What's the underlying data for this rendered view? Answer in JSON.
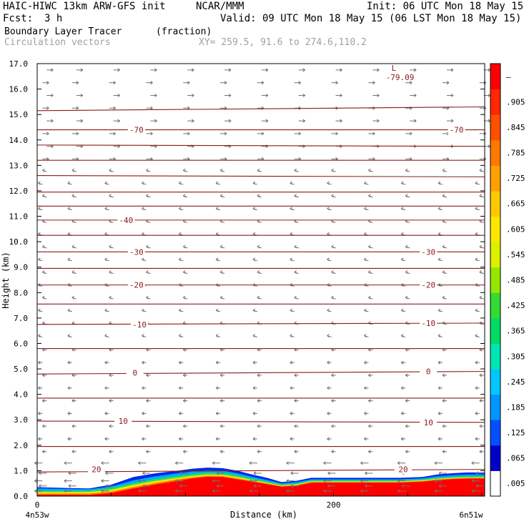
{
  "header": {
    "model": "HAIC-HIWC 13km ARW-GFS init",
    "center": "NCAR/MMM",
    "init": "Init: 06 UTC Mon 18 May 15",
    "fcst_label": "Fcst:",
    "fcst_value": "3 h",
    "valid": "Valid: 09 UTC Mon 18 May 15 (06 LST Mon 18 May 15)",
    "field_name": "Boundary Layer Tracer",
    "field_units": "(fraction)",
    "overlay": "Circulation vectors",
    "cross_section": "XY= 259.5, 91.6 to 274.6,110.2"
  },
  "chart_data": {
    "type": "area",
    "xlabel": "Distance (km)",
    "ylabel": "Height (km)",
    "xlim": [
      0,
      302
    ],
    "ylim": [
      0,
      17
    ],
    "x_ticks": [
      {
        "value": 0,
        "label": "0"
      },
      {
        "value": 200,
        "label": "200"
      }
    ],
    "x_end_labels": {
      "left": "4n53w",
      "right": "6n51w"
    },
    "y_ticks": [
      {
        "value": 0,
        "label": "0.0"
      },
      {
        "value": 1,
        "label": "1.0"
      },
      {
        "value": 2,
        "label": "2.0"
      },
      {
        "value": 3,
        "label": "3.0"
      },
      {
        "value": 4,
        "label": "4.0"
      },
      {
        "value": 5,
        "label": "5.0"
      },
      {
        "value": 6,
        "label": "6.0"
      },
      {
        "value": 7,
        "label": "7.0"
      },
      {
        "value": 8,
        "label": "8.0"
      },
      {
        "value": 9,
        "label": "9.0"
      },
      {
        "value": 10,
        "label": "10.0"
      },
      {
        "value": 11,
        "label": "11.0"
      },
      {
        "value": 12,
        "label": "12.0"
      },
      {
        "value": 13,
        "label": "13.0"
      },
      {
        "value": 14,
        "label": "14.0"
      },
      {
        "value": 15,
        "label": "15.0"
      },
      {
        "value": 16,
        "label": "16.0"
      },
      {
        "value": 17,
        "label": "17.0"
      }
    ],
    "colorbar": {
      "colors": [
        "#ffffff",
        "#0000c8",
        "#0050ff",
        "#0096ff",
        "#00c8ff",
        "#00e6b4",
        "#00dc64",
        "#32dc32",
        "#96e600",
        "#dcf000",
        "#ffe600",
        "#ffc800",
        "#ffa000",
        "#ff7800",
        "#ff5000",
        "#ff2800",
        "#ff0000"
      ],
      "labels": [
        ".005",
        ".065",
        ".125",
        ".185",
        ".245",
        ".305",
        ".365",
        ".425",
        ".485",
        ".545",
        ".605",
        ".665",
        ".725",
        ".785",
        ".845",
        ".905",
        "–"
      ]
    },
    "tracer_layers": [
      {
        "name": "blue",
        "color": "#0028e6",
        "x": [
          0,
          20,
          35,
          50,
          65,
          80,
          95,
          105,
          115,
          125,
          135,
          145,
          155,
          165,
          175,
          185,
          200,
          215,
          230,
          245,
          260,
          270,
          280,
          290,
          302
        ],
        "top": [
          0.35,
          0.32,
          0.3,
          0.45,
          0.75,
          0.9,
          1.0,
          1.08,
          1.12,
          1.1,
          1.0,
          0.85,
          0.72,
          0.55,
          0.6,
          0.72,
          0.72,
          0.72,
          0.72,
          0.72,
          0.75,
          0.85,
          0.9,
          0.93,
          0.93
        ]
      },
      {
        "name": "cyan",
        "color": "#00aaff",
        "x": [
          0,
          20,
          35,
          50,
          65,
          80,
          95,
          105,
          115,
          125,
          135,
          145,
          155,
          165,
          175,
          185,
          200,
          215,
          230,
          245,
          260,
          270,
          280,
          290,
          302
        ],
        "top": [
          0.3,
          0.28,
          0.27,
          0.38,
          0.62,
          0.78,
          0.9,
          0.97,
          1.02,
          1.0,
          0.9,
          0.76,
          0.64,
          0.5,
          0.55,
          0.66,
          0.66,
          0.66,
          0.66,
          0.66,
          0.7,
          0.78,
          0.82,
          0.85,
          0.85
        ]
      },
      {
        "name": "green",
        "color": "#22dd66",
        "x": [
          0,
          20,
          35,
          50,
          65,
          80,
          95,
          105,
          115,
          125,
          135,
          145,
          155,
          165,
          175,
          185,
          200,
          215,
          230,
          245,
          260,
          270,
          280,
          290,
          302
        ],
        "top": [
          0.22,
          0.22,
          0.22,
          0.32,
          0.52,
          0.68,
          0.8,
          0.88,
          0.93,
          0.92,
          0.82,
          0.7,
          0.58,
          0.46,
          0.5,
          0.62,
          0.62,
          0.62,
          0.62,
          0.62,
          0.66,
          0.72,
          0.76,
          0.78,
          0.78
        ]
      },
      {
        "name": "yellow",
        "color": "#f5e600",
        "x": [
          0,
          20,
          35,
          50,
          65,
          80,
          95,
          105,
          115,
          125,
          135,
          145,
          155,
          165,
          175,
          185,
          200,
          215,
          230,
          245,
          260,
          270,
          280,
          290,
          302
        ],
        "top": [
          0.16,
          0.16,
          0.16,
          0.25,
          0.44,
          0.6,
          0.72,
          0.8,
          0.85,
          0.84,
          0.75,
          0.64,
          0.53,
          0.42,
          0.46,
          0.58,
          0.58,
          0.58,
          0.58,
          0.58,
          0.62,
          0.68,
          0.72,
          0.74,
          0.74
        ]
      },
      {
        "name": "orange",
        "color": "#ff7a00",
        "x": [
          0,
          20,
          35,
          50,
          65,
          80,
          95,
          105,
          115,
          125,
          135,
          145,
          155,
          165,
          175,
          185,
          200,
          215,
          230,
          245,
          260,
          270,
          280,
          290,
          302
        ],
        "top": [
          0.1,
          0.1,
          0.1,
          0.18,
          0.36,
          0.52,
          0.66,
          0.74,
          0.8,
          0.79,
          0.7,
          0.6,
          0.5,
          0.39,
          0.43,
          0.55,
          0.55,
          0.55,
          0.55,
          0.55,
          0.59,
          0.65,
          0.69,
          0.71,
          0.71
        ]
      },
      {
        "name": "red",
        "color": "#ff0000",
        "x": [
          0,
          20,
          35,
          50,
          65,
          80,
          95,
          105,
          115,
          125,
          135,
          145,
          155,
          165,
          175,
          185,
          200,
          215,
          230,
          245,
          260,
          270,
          280,
          290,
          302
        ],
        "top": [
          0.05,
          0.05,
          0.05,
          0.12,
          0.3,
          0.46,
          0.6,
          0.7,
          0.76,
          0.75,
          0.66,
          0.57,
          0.47,
          0.37,
          0.41,
          0.53,
          0.53,
          0.53,
          0.53,
          0.53,
          0.57,
          0.63,
          0.67,
          0.69,
          0.69
        ]
      }
    ],
    "contours": {
      "color": "#8b1a1a",
      "lines": [
        [
          0.95,
          1.05
        ],
        [
          1.95,
          1.95
        ],
        [
          2.95,
          2.9
        ],
        [
          3.85,
          3.85
        ],
        [
          4.8,
          4.9
        ],
        [
          5.8,
          5.8
        ],
        [
          6.75,
          6.8
        ],
        [
          7.55,
          7.55
        ],
        [
          8.3,
          8.3
        ],
        [
          8.95,
          8.95
        ],
        [
          9.6,
          9.6
        ],
        [
          10.25,
          10.25
        ],
        [
          10.85,
          10.85
        ],
        [
          11.4,
          11.4
        ],
        [
          11.95,
          11.95
        ],
        [
          12.6,
          12.55
        ],
        [
          13.2,
          13.2
        ],
        [
          13.8,
          13.75
        ],
        [
          14.4,
          14.4
        ],
        [
          15.15,
          15.3
        ]
      ],
      "labels": [
        {
          "text": "20",
          "x": 40,
          "y": 1.05
        },
        {
          "text": "20",
          "x": 247,
          "y": 1.05
        },
        {
          "text": "10",
          "x": 58,
          "y": 2.95
        },
        {
          "text": "10",
          "x": 264,
          "y": 2.9
        },
        {
          "text": "0",
          "x": 66,
          "y": 4.85
        },
        {
          "text": "0",
          "x": 264,
          "y": 4.9
        },
        {
          "text": "-10",
          "x": 69,
          "y": 6.75
        },
        {
          "text": "-10",
          "x": 264,
          "y": 6.8
        },
        {
          "text": "-20",
          "x": 67,
          "y": 8.3
        },
        {
          "text": "-20",
          "x": 264,
          "y": 8.3
        },
        {
          "text": "-30",
          "x": 67,
          "y": 9.6
        },
        {
          "text": "-30",
          "x": 264,
          "y": 9.6
        },
        {
          "text": "-40",
          "x": 60,
          "y": 10.85
        },
        {
          "text": "-70",
          "x": 67,
          "y": 14.4
        },
        {
          "text": "-70",
          "x": 283,
          "y": 14.4
        }
      ],
      "low": {
        "symbol": "L",
        "value": "-79.09",
        "x": 242,
        "y": 16.6
      }
    },
    "vectors": {
      "color": "#707070",
      "columns": [
        5,
        25,
        50,
        75,
        100,
        125,
        150,
        175,
        200,
        225,
        250,
        275,
        300
      ],
      "levels": [
        0.2,
        0.4,
        0.6,
        0.9,
        1.3,
        1.75,
        2.25,
        2.75,
        3.25,
        3.75,
        4.25,
        4.75,
        5.25,
        5.75,
        6.25,
        6.75,
        7.25,
        7.75,
        8.25,
        8.75,
        9.25,
        9.75,
        10.25,
        10.75,
        11.25,
        11.75,
        12.25,
        12.75,
        13.25,
        13.75,
        14.25,
        14.75,
        15.25,
        15.75,
        16.25,
        16.75
      ],
      "note": "u component negative (westward) below 13 km, positive aloft"
    }
  }
}
